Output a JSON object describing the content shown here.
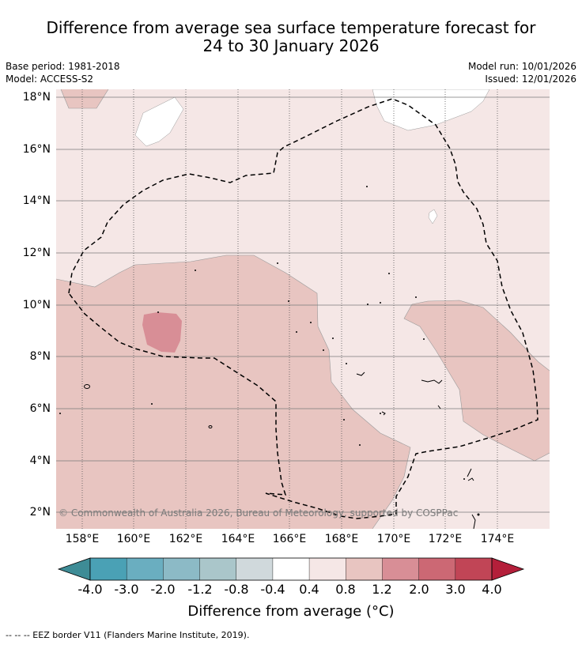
{
  "title_line1": "Difference from average sea surface temperature forecast for",
  "title_line2": "24 to 30 January 2026",
  "meta": {
    "base_period": "Base period: 1981-2018",
    "model": "Model: ACCESS-S2",
    "model_run": "Model run: 10/01/2026",
    "issued": "Issued: 12/01/2026"
  },
  "map": {
    "lat_range": [
      1.4,
      18.2
    ],
    "lon_range": [
      157.0,
      176.0
    ],
    "lat_labels": [
      "18°N",
      "16°N",
      "14°N",
      "12°N",
      "10°N",
      "8°N",
      "6°N",
      "4°N",
      "2°N"
    ],
    "lon_labels": [
      "158°E",
      "160°E",
      "162°E",
      "164°E",
      "166°E",
      "168°E",
      "170°E",
      "172°E",
      "174°E"
    ],
    "copyright": "© Commonwealth of Australia 2026, Bureau of Meteorology, supported by COSPPac"
  },
  "colorbar": {
    "ticks": [
      "-4.0",
      "-3.0",
      "-2.0",
      "-1.2",
      "-0.8",
      "-0.4",
      "0.4",
      "0.8",
      "1.2",
      "2.0",
      "3.0",
      "4.0"
    ],
    "colors": [
      "#4aa1b5",
      "#6aaec0",
      "#8cbac6",
      "#aac6ca",
      "#d0d9dc",
      "#ffffff",
      "#f5e7e6",
      "#e8c5c1",
      "#d88e96",
      "#cc6874",
      "#c14556"
    ],
    "under_color": "#3e8c96",
    "over_color": "#b41f3a",
    "label": "Difference from average (°C)"
  },
  "footer": "-- -- -- EEZ border V11 (Flanders Marine Institute, 2019)."
}
